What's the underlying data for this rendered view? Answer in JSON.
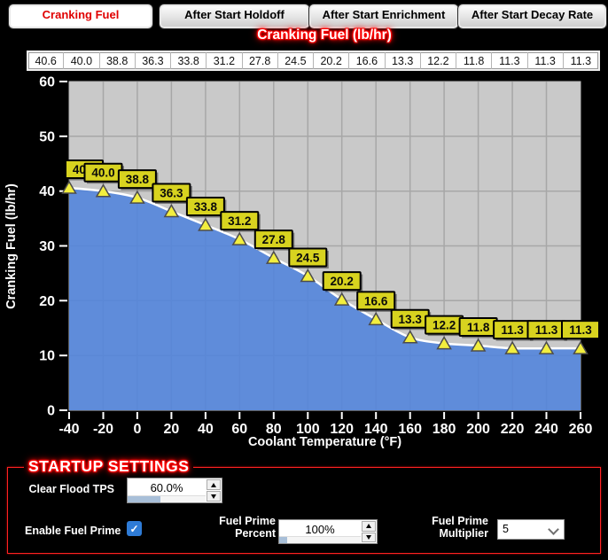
{
  "tabs": [
    {
      "label": "Cranking Fuel",
      "active": true
    },
    {
      "label": "After Start Holdoff",
      "active": false
    },
    {
      "label": "After Start Enrichment",
      "active": false
    },
    {
      "label": "After Start Decay Rate",
      "active": false
    }
  ],
  "chart_data": {
    "type": "area",
    "title": "Cranking Fuel (lb/hr)",
    "xlabel": "Coolant Temperature (°F)",
    "ylabel": "Cranking Fuel (lb/hr)",
    "x": [
      -40,
      -20,
      0,
      20,
      40,
      60,
      80,
      100,
      120,
      140,
      160,
      180,
      200,
      220,
      240,
      260
    ],
    "values": [
      40.6,
      40.0,
      38.8,
      36.3,
      33.8,
      31.2,
      27.8,
      24.5,
      20.2,
      16.6,
      13.3,
      12.2,
      11.8,
      11.3,
      11.3,
      11.3
    ],
    "point_labels": [
      "40.6",
      "40.0",
      "38.8",
      "36.3",
      "33.8",
      "31.2",
      "27.8",
      "24.5",
      "20.2",
      "16.6",
      "13.3",
      "12.2",
      "11.8",
      "11.3",
      "11.3",
      "11.3"
    ],
    "ylim": [
      0,
      60
    ],
    "ytick_step": 10,
    "grid": true,
    "marker": "triangle-up",
    "legend_position": "none"
  },
  "startup": {
    "legend": "STARTUP SETTINGS",
    "clear_flood_tps": {
      "label": "Clear Flood TPS",
      "value": "60.0%",
      "fill_ratio": 0.42
    },
    "enable_fuel_prime": {
      "label": "Enable Fuel Prime",
      "checked": true,
      "checkmark": "✓"
    },
    "fuel_prime_percent": {
      "label_lines": [
        "Fuel Prime",
        "Percent"
      ],
      "value": "100%",
      "fill_ratio": 0.1
    },
    "fuel_prime_multiplier": {
      "label_lines": [
        "Fuel Prime",
        "Multiplier"
      ],
      "value": "5"
    }
  },
  "colors": {
    "accent_red": "#ff0000",
    "plot_bg": "#c9c9c9",
    "grid_line": "#a7a7a7",
    "area_fill": "#5385dc",
    "curve": "#ffffff",
    "marker_fill": "#f2ee3e",
    "marker_stroke": "#4c4c4c",
    "point_label_bg": "#d8d31f",
    "axis_text": "#ffffff",
    "checkbox_blue": "#2e7bd6",
    "spinner_fill": "#a8bfd8"
  }
}
